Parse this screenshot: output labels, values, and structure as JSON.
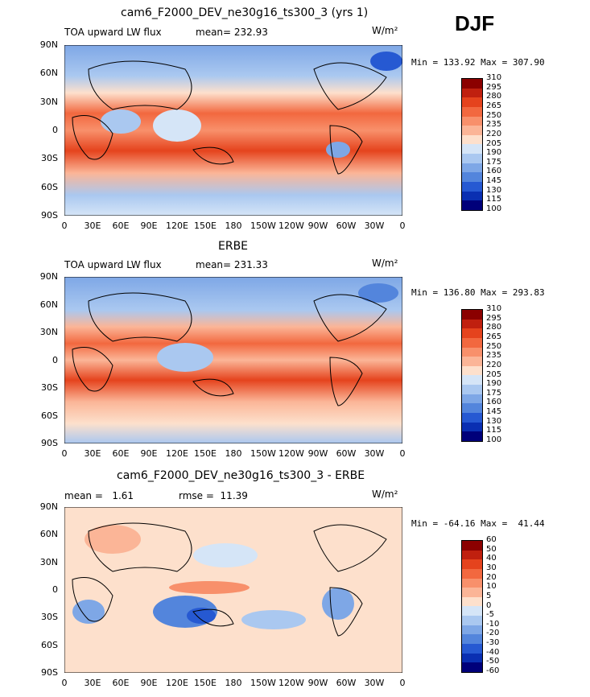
{
  "season": "DJF",
  "panels": [
    {
      "title": "cam6_F2000_DEV_ne30g16_ts300_3 (yrs 1)",
      "left_label": "TOA upward LW flux",
      "center_label": "mean= 232.93",
      "units": "W/m²",
      "minmax": "Min = 133.92 Max = 307.90",
      "legend_levels": [
        "310",
        "295",
        "280",
        "265",
        "250",
        "235",
        "220",
        "205",
        "190",
        "175",
        "160",
        "145",
        "130",
        "115",
        "100"
      ]
    },
    {
      "title": "ERBE",
      "left_label": "TOA upward LW flux",
      "center_label": "mean= 231.33",
      "units": "W/m²",
      "minmax": "Min = 136.80 Max = 293.83",
      "legend_levels": [
        "310",
        "295",
        "280",
        "265",
        "250",
        "235",
        "220",
        "205",
        "190",
        "175",
        "160",
        "145",
        "130",
        "115",
        "100"
      ]
    },
    {
      "title": "cam6_F2000_DEV_ne30g16_ts300_3 - ERBE",
      "left_label": "mean =   1.61",
      "center_label": "rmse =  11.39",
      "units": "W/m²",
      "minmax": "Min = -64.16 Max =  41.44",
      "legend_levels": [
        "60",
        "50",
        "40",
        "30",
        "20",
        "10",
        "5",
        "0",
        "-5",
        "-10",
        "-20",
        "-30",
        "-40",
        "-50",
        "-60"
      ]
    }
  ],
  "lat_ticks": [
    "90N",
    "60N",
    "30N",
    "0",
    "30S",
    "60S",
    "90S"
  ],
  "lon_ticks": [
    "0",
    "30E",
    "60E",
    "90E",
    "120E",
    "150E",
    "180",
    "150W",
    "120W",
    "90W",
    "60W",
    "30W",
    "0"
  ],
  "colors": {
    "ramp": [
      "#8b0000",
      "#c0200f",
      "#e5431d",
      "#f2683f",
      "#f8906b",
      "#fbb597",
      "#fde0cc",
      "#ffffff",
      "#d5e5f7",
      "#aac8f0",
      "#7ea7e6",
      "#5385dc",
      "#2659d2",
      "#0a2fb2",
      "#00007a"
    ]
  }
}
